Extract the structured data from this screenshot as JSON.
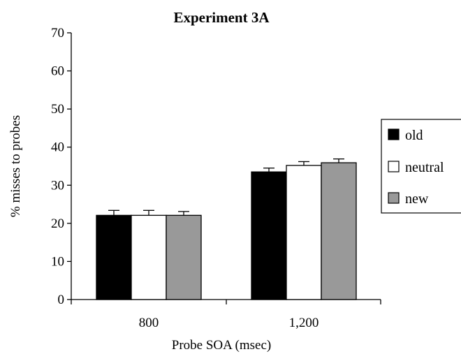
{
  "chart_data": {
    "type": "bar",
    "title": "Experiment 3A",
    "xlabel": "Probe SOA (msec)",
    "ylabel": "% misses to probes",
    "categories": [
      "800",
      "1,200"
    ],
    "ylim": [
      0,
      70
    ],
    "yticks": [
      0,
      10,
      20,
      30,
      40,
      50,
      60,
      70
    ],
    "grid": false,
    "legend_position": "right",
    "error_bars": true,
    "series": [
      {
        "name": "old",
        "color": "#000000",
        "values": [
          22.1,
          33.5
        ],
        "errors": [
          1.3,
          1.0
        ]
      },
      {
        "name": "neutral",
        "color": "#ffffff",
        "values": [
          22.1,
          35.2
        ],
        "errors": [
          1.3,
          1.0
        ]
      },
      {
        "name": "new",
        "color": "#999999",
        "values": [
          22.1,
          35.9
        ],
        "errors": [
          1.0,
          1.0
        ]
      }
    ]
  }
}
